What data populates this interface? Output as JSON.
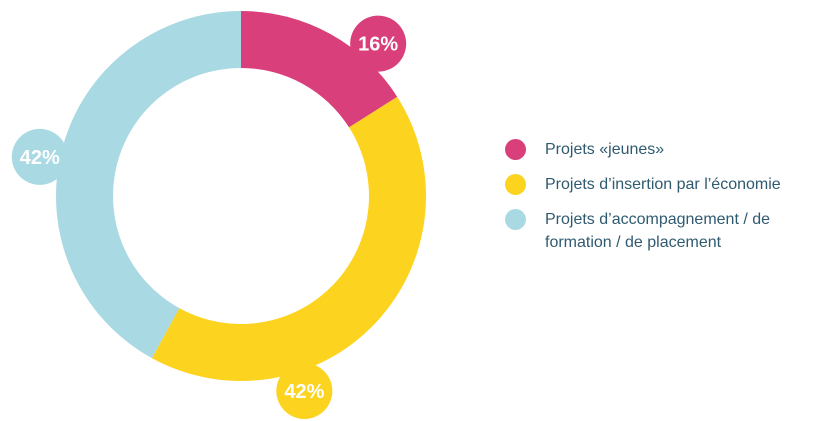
{
  "chart_data": {
    "type": "donut",
    "categories": [
      "Projets «jeunes»",
      "Projets d’insertion par l’économie",
      "Projets d’accompagnement / de formation / de placement"
    ],
    "values": [
      16,
      42,
      42
    ],
    "value_labels": [
      "16%",
      "42%",
      "42%"
    ],
    "colors": [
      "#d9407b",
      "#fcd31e",
      "#a9dae3"
    ],
    "legend": "right"
  }
}
